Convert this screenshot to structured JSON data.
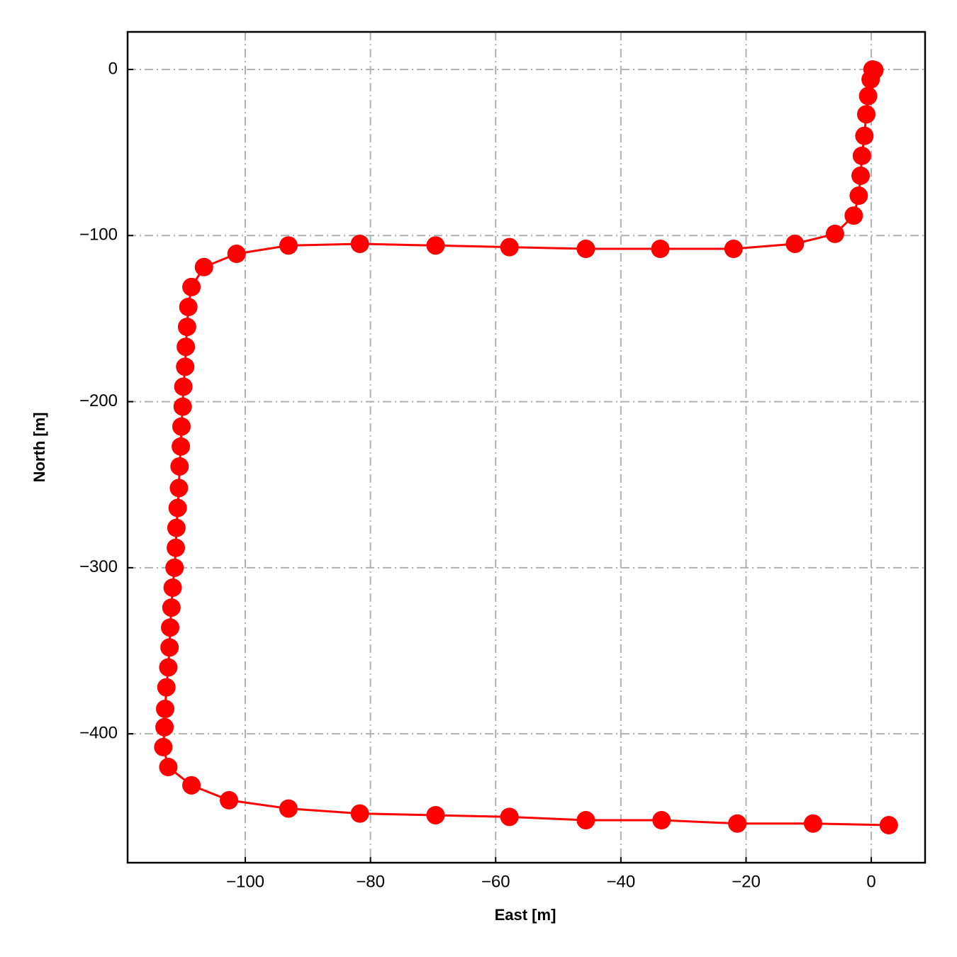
{
  "chart_data": {
    "type": "line",
    "xlabel": "East [m]",
    "ylabel": "North [m]",
    "x": [
      0.2,
      0.5,
      -0.1,
      -0.5,
      -0.8,
      -1.1,
      -1.5,
      -1.7,
      -2.0,
      -2.8,
      -5.8,
      -12.2,
      -22.0,
      -33.7,
      -45.6,
      -57.8,
      -69.6,
      -81.7,
      -93.1,
      -101.4,
      -106.6,
      -108.6,
      -109.1,
      -109.3,
      -109.5,
      -109.6,
      -109.9,
      -110.0,
      -110.2,
      -110.3,
      -110.5,
      -110.6,
      -110.8,
      -111.0,
      -111.1,
      -111.3,
      -111.6,
      -111.8,
      -112.0,
      -112.1,
      -112.3,
      -112.6,
      -112.8,
      -112.9,
      -113.1,
      -112.3,
      -108.6,
      -102.6,
      -93.1,
      -81.7,
      -69.6,
      -57.8,
      -45.6,
      -33.5,
      -21.4,
      -9.3,
      2.8
    ],
    "values": [
      0,
      -0.4,
      -6,
      -16,
      -27,
      -40,
      -52,
      -64,
      -76,
      -88,
      -99,
      -105,
      -108,
      -108,
      -108,
      -107,
      -106,
      -105,
      -106,
      -111,
      -119,
      -131,
      -143,
      -155,
      -167,
      -179,
      -191,
      -203,
      -215,
      -227,
      -239,
      -252,
      -264,
      -276,
      -288,
      -300,
      -312,
      -324,
      -336,
      -348,
      -360,
      -372,
      -385,
      -396,
      -408,
      -420,
      -431,
      -440,
      -445,
      -448,
      -449,
      -450,
      -452,
      -452,
      -454,
      -454,
      -455
    ],
    "color": "#ff0000",
    "marker": "o",
    "xlim": [
      -118.8,
      8.6
    ],
    "ylim": [
      -477.6,
      22.6
    ],
    "xticks": [
      {
        "value": -100,
        "label": "−100"
      },
      {
        "value": -80,
        "label": "−80"
      },
      {
        "value": -60,
        "label": "−60"
      },
      {
        "value": -40,
        "label": "−40"
      },
      {
        "value": -20,
        "label": "−20"
      },
      0
    ],
    "yticks": [
      {
        "value": -400,
        "label": "−400"
      },
      {
        "value": -300,
        "label": "−300"
      },
      {
        "value": -200,
        "label": "−200"
      },
      {
        "value": -100,
        "label": "−100"
      },
      0
    ],
    "grid": true
  }
}
